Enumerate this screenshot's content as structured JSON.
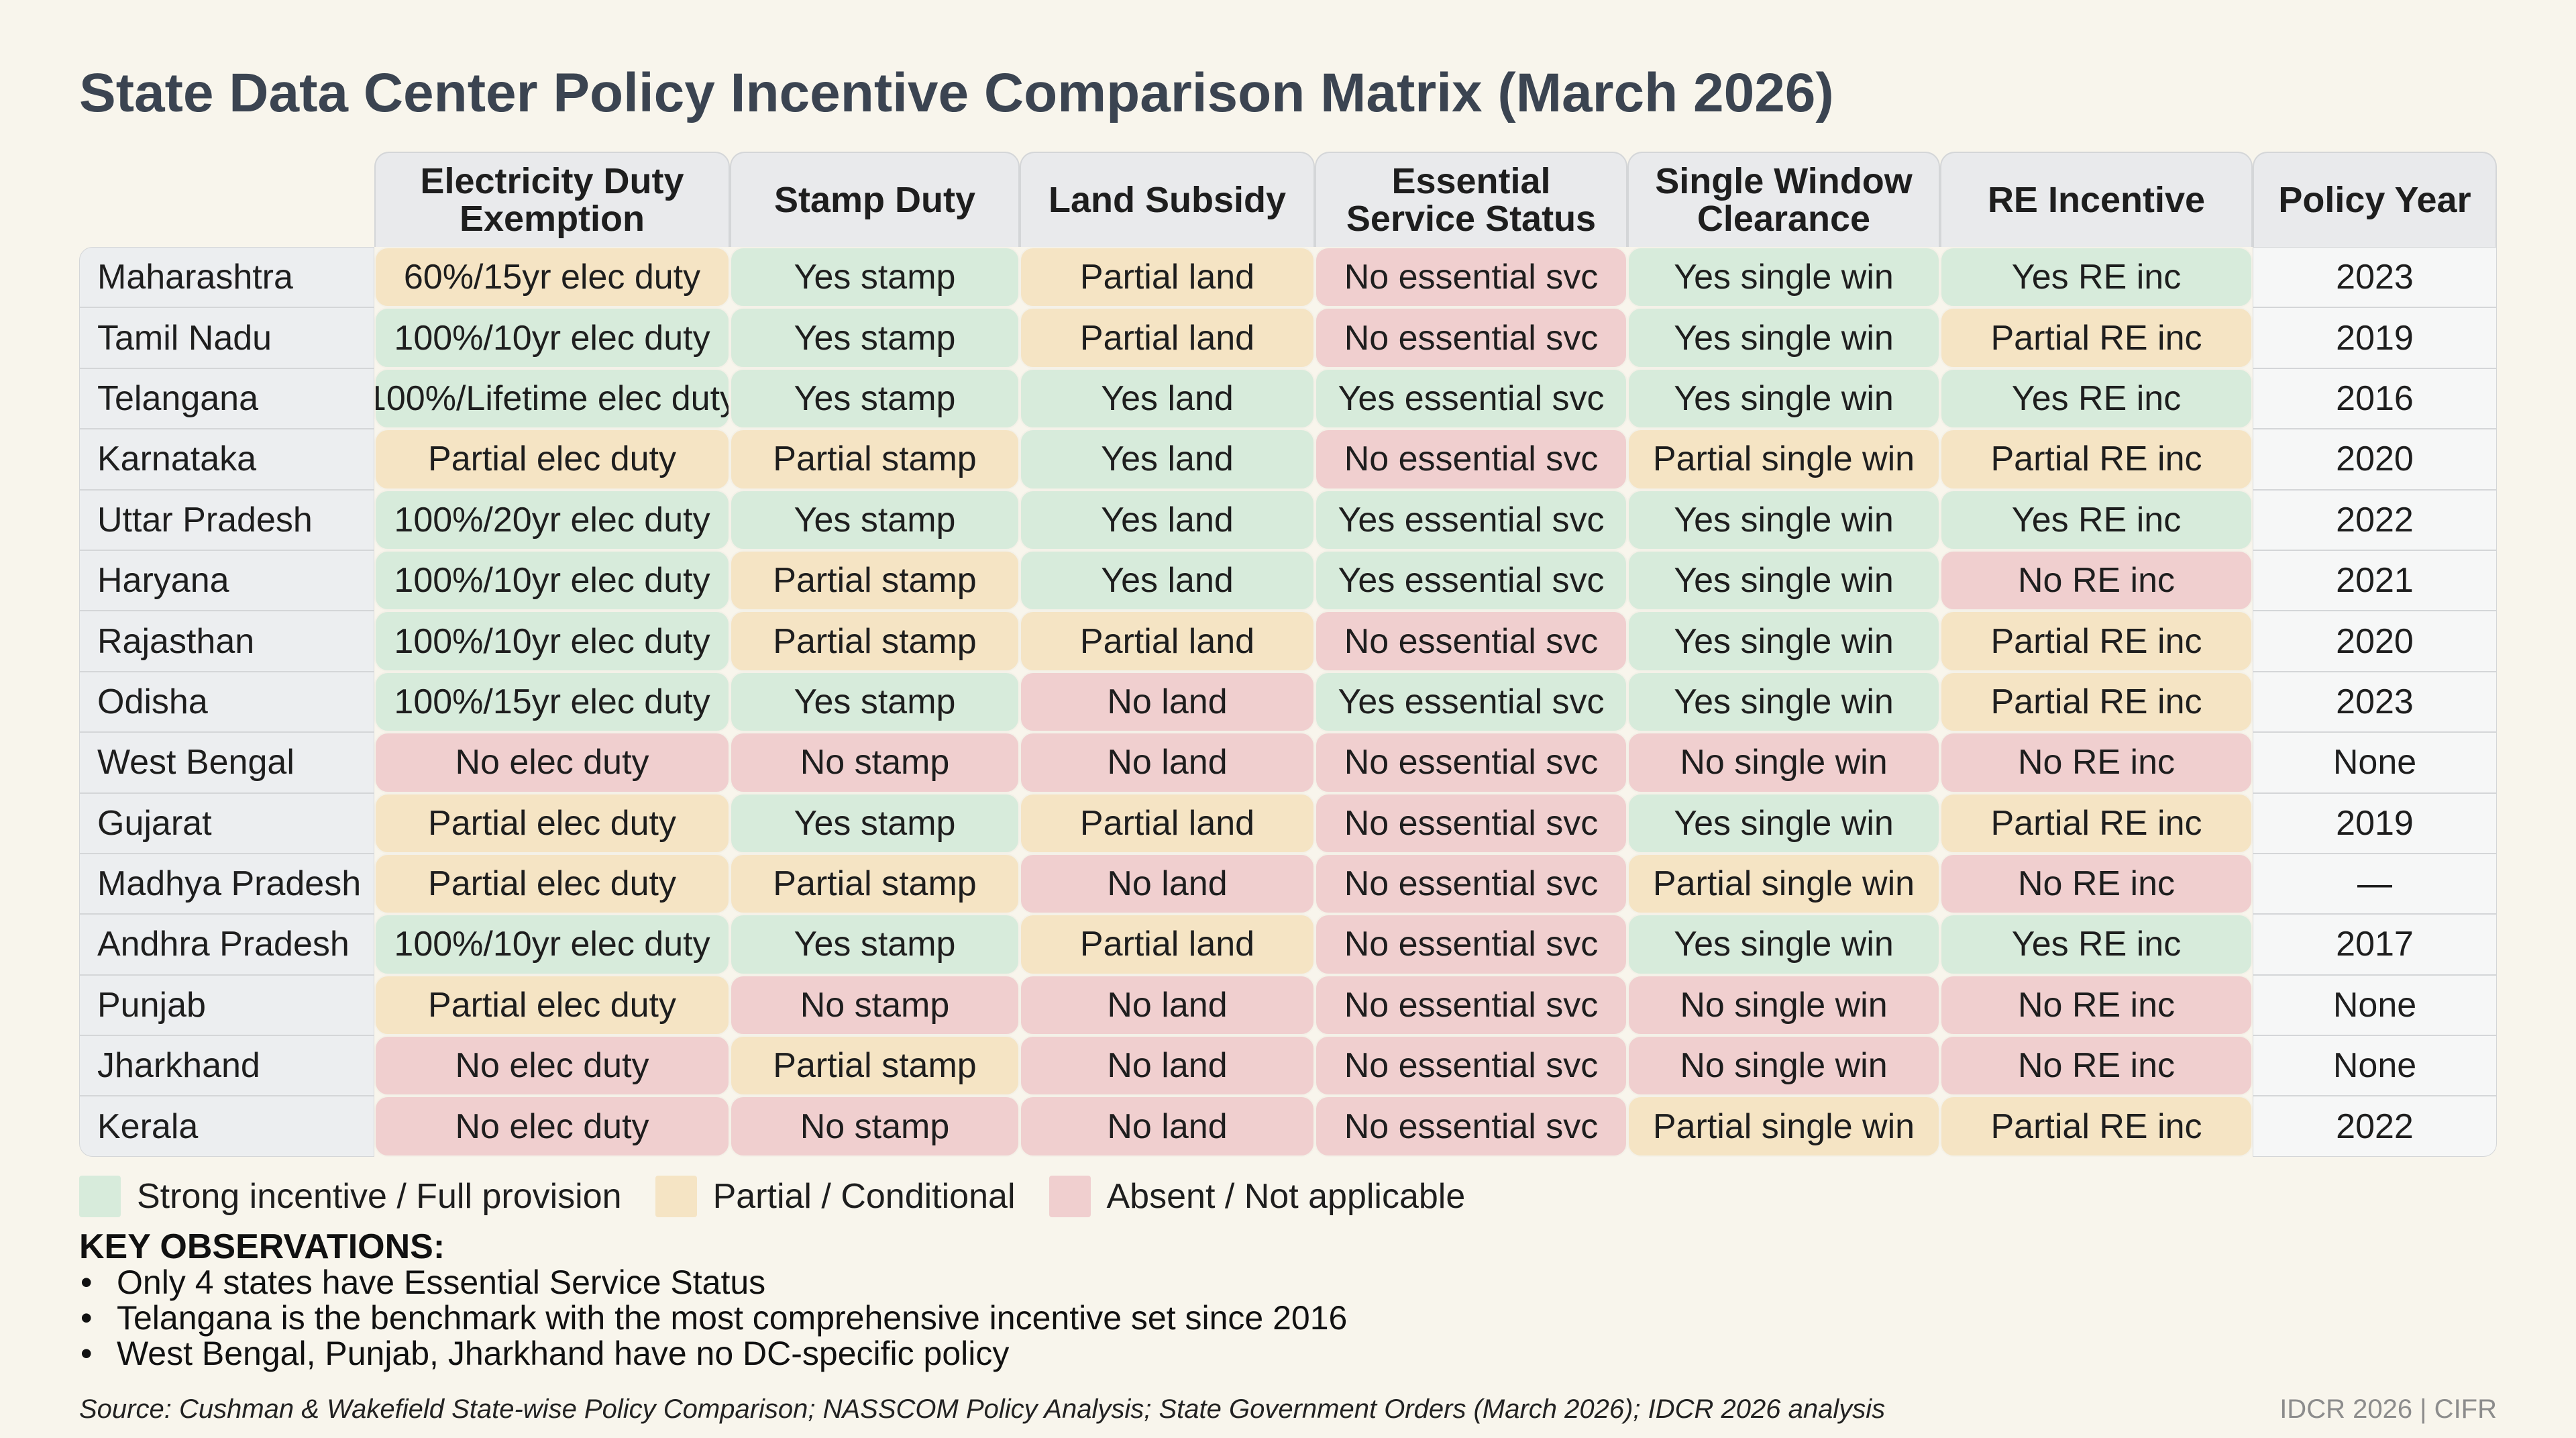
{
  "title": "State Data Center Policy Incentive Comparison Matrix (March 2026)",
  "chart_data": {
    "type": "table",
    "columns": [
      "Electricity Duty Exemption",
      "Stamp Duty",
      "Land Subsidy",
      "Essential Service Status",
      "Single Window Clearance",
      "RE Incentive",
      "Policy Year"
    ],
    "rows": [
      {
        "state": "Maharashtra",
        "cells": [
          {
            "text": "60%/15yr elec duty",
            "level": "partial"
          },
          {
            "text": "Yes stamp",
            "level": "yes"
          },
          {
            "text": "Partial land",
            "level": "partial"
          },
          {
            "text": "No essential svc",
            "level": "no"
          },
          {
            "text": "Yes single win",
            "level": "yes"
          },
          {
            "text": "Yes RE inc",
            "level": "yes"
          }
        ],
        "year": "2023"
      },
      {
        "state": "Tamil Nadu",
        "cells": [
          {
            "text": "100%/10yr elec duty",
            "level": "yes"
          },
          {
            "text": "Yes stamp",
            "level": "yes"
          },
          {
            "text": "Partial land",
            "level": "partial"
          },
          {
            "text": "No essential svc",
            "level": "no"
          },
          {
            "text": "Yes single win",
            "level": "yes"
          },
          {
            "text": "Partial RE inc",
            "level": "partial"
          }
        ],
        "year": "2019"
      },
      {
        "state": "Telangana",
        "cells": [
          {
            "text": "100%/Lifetime elec duty",
            "level": "yes"
          },
          {
            "text": "Yes stamp",
            "level": "yes"
          },
          {
            "text": "Yes land",
            "level": "yes"
          },
          {
            "text": "Yes essential svc",
            "level": "yes"
          },
          {
            "text": "Yes single win",
            "level": "yes"
          },
          {
            "text": "Yes RE inc",
            "level": "yes"
          }
        ],
        "year": "2016"
      },
      {
        "state": "Karnataka",
        "cells": [
          {
            "text": "Partial elec duty",
            "level": "partial"
          },
          {
            "text": "Partial stamp",
            "level": "partial"
          },
          {
            "text": "Yes land",
            "level": "yes"
          },
          {
            "text": "No essential svc",
            "level": "no"
          },
          {
            "text": "Partial single win",
            "level": "partial"
          },
          {
            "text": "Partial RE inc",
            "level": "partial"
          }
        ],
        "year": "2020"
      },
      {
        "state": "Uttar Pradesh",
        "cells": [
          {
            "text": "100%/20yr elec duty",
            "level": "yes"
          },
          {
            "text": "Yes stamp",
            "level": "yes"
          },
          {
            "text": "Yes land",
            "level": "yes"
          },
          {
            "text": "Yes essential svc",
            "level": "yes"
          },
          {
            "text": "Yes single win",
            "level": "yes"
          },
          {
            "text": "Yes RE inc",
            "level": "yes"
          }
        ],
        "year": "2022"
      },
      {
        "state": "Haryana",
        "cells": [
          {
            "text": "100%/10yr elec duty",
            "level": "yes"
          },
          {
            "text": "Partial stamp",
            "level": "partial"
          },
          {
            "text": "Yes land",
            "level": "yes"
          },
          {
            "text": "Yes essential svc",
            "level": "yes"
          },
          {
            "text": "Yes single win",
            "level": "yes"
          },
          {
            "text": "No RE inc",
            "level": "no"
          }
        ],
        "year": "2021"
      },
      {
        "state": "Rajasthan",
        "cells": [
          {
            "text": "100%/10yr elec duty",
            "level": "yes"
          },
          {
            "text": "Partial stamp",
            "level": "partial"
          },
          {
            "text": "Partial land",
            "level": "partial"
          },
          {
            "text": "No essential svc",
            "level": "no"
          },
          {
            "text": "Yes single win",
            "level": "yes"
          },
          {
            "text": "Partial RE inc",
            "level": "partial"
          }
        ],
        "year": "2020"
      },
      {
        "state": "Odisha",
        "cells": [
          {
            "text": "100%/15yr elec duty",
            "level": "yes"
          },
          {
            "text": "Yes stamp",
            "level": "yes"
          },
          {
            "text": "No land",
            "level": "no"
          },
          {
            "text": "Yes essential svc",
            "level": "yes"
          },
          {
            "text": "Yes single win",
            "level": "yes"
          },
          {
            "text": "Partial RE inc",
            "level": "partial"
          }
        ],
        "year": "2023"
      },
      {
        "state": "West Bengal",
        "cells": [
          {
            "text": "No elec duty",
            "level": "no"
          },
          {
            "text": "No stamp",
            "level": "no"
          },
          {
            "text": "No land",
            "level": "no"
          },
          {
            "text": "No essential svc",
            "level": "no"
          },
          {
            "text": "No single win",
            "level": "no"
          },
          {
            "text": "No RE inc",
            "level": "no"
          }
        ],
        "year": "None"
      },
      {
        "state": "Gujarat",
        "cells": [
          {
            "text": "Partial elec duty",
            "level": "partial"
          },
          {
            "text": "Yes stamp",
            "level": "yes"
          },
          {
            "text": "Partial land",
            "level": "partial"
          },
          {
            "text": "No essential svc",
            "level": "no"
          },
          {
            "text": "Yes single win",
            "level": "yes"
          },
          {
            "text": "Partial RE inc",
            "level": "partial"
          }
        ],
        "year": "2019"
      },
      {
        "state": "Madhya Pradesh",
        "cells": [
          {
            "text": "Partial elec duty",
            "level": "partial"
          },
          {
            "text": "Partial stamp",
            "level": "partial"
          },
          {
            "text": "No land",
            "level": "no"
          },
          {
            "text": "No essential svc",
            "level": "no"
          },
          {
            "text": "Partial single win",
            "level": "partial"
          },
          {
            "text": "No RE inc",
            "level": "no"
          }
        ],
        "year": "—"
      },
      {
        "state": "Andhra Pradesh",
        "cells": [
          {
            "text": "100%/10yr elec duty",
            "level": "yes"
          },
          {
            "text": "Yes stamp",
            "level": "yes"
          },
          {
            "text": "Partial land",
            "level": "partial"
          },
          {
            "text": "No essential svc",
            "level": "no"
          },
          {
            "text": "Yes single win",
            "level": "yes"
          },
          {
            "text": "Yes RE inc",
            "level": "yes"
          }
        ],
        "year": "2017"
      },
      {
        "state": "Punjab",
        "cells": [
          {
            "text": "Partial elec duty",
            "level": "partial"
          },
          {
            "text": "No stamp",
            "level": "no"
          },
          {
            "text": "No land",
            "level": "no"
          },
          {
            "text": "No essential svc",
            "level": "no"
          },
          {
            "text": "No single win",
            "level": "no"
          },
          {
            "text": "No RE inc",
            "level": "no"
          }
        ],
        "year": "None"
      },
      {
        "state": "Jharkhand",
        "cells": [
          {
            "text": "No elec duty",
            "level": "no"
          },
          {
            "text": "Partial stamp",
            "level": "partial"
          },
          {
            "text": "No land",
            "level": "no"
          },
          {
            "text": "No essential svc",
            "level": "no"
          },
          {
            "text": "No single win",
            "level": "no"
          },
          {
            "text": "No RE inc",
            "level": "no"
          }
        ],
        "year": "None"
      },
      {
        "state": "Kerala",
        "cells": [
          {
            "text": "No elec duty",
            "level": "no"
          },
          {
            "text": "No stamp",
            "level": "no"
          },
          {
            "text": "No land",
            "level": "no"
          },
          {
            "text": "No essential svc",
            "level": "no"
          },
          {
            "text": "Partial single win",
            "level": "partial"
          },
          {
            "text": "Partial RE inc",
            "level": "partial"
          }
        ],
        "year": "2022"
      }
    ]
  },
  "colors": {
    "yes": "#d7ebdb",
    "partial": "#f5e4c4",
    "no": "#f0cfcf"
  },
  "legend": [
    {
      "label": "Strong incentive / Full provision",
      "level": "yes"
    },
    {
      "label": "Partial / Conditional",
      "level": "partial"
    },
    {
      "label": "Absent / Not applicable",
      "level": "no"
    }
  ],
  "observations": {
    "title": "KEY OBSERVATIONS:",
    "items": [
      "Only 4 states have Essential Service Status",
      "Telangana is the benchmark with the most comprehensive incentive set since 2016",
      "West Bengal, Punjab, Jharkhand have no DC-specific policy"
    ]
  },
  "source": "Source: Cushman & Wakefield State-wise Policy Comparison; NASSCOM Policy Analysis; State Government Orders (March 2026); IDCR 2026 analysis",
  "footer": "IDCR 2026 | CIFR"
}
